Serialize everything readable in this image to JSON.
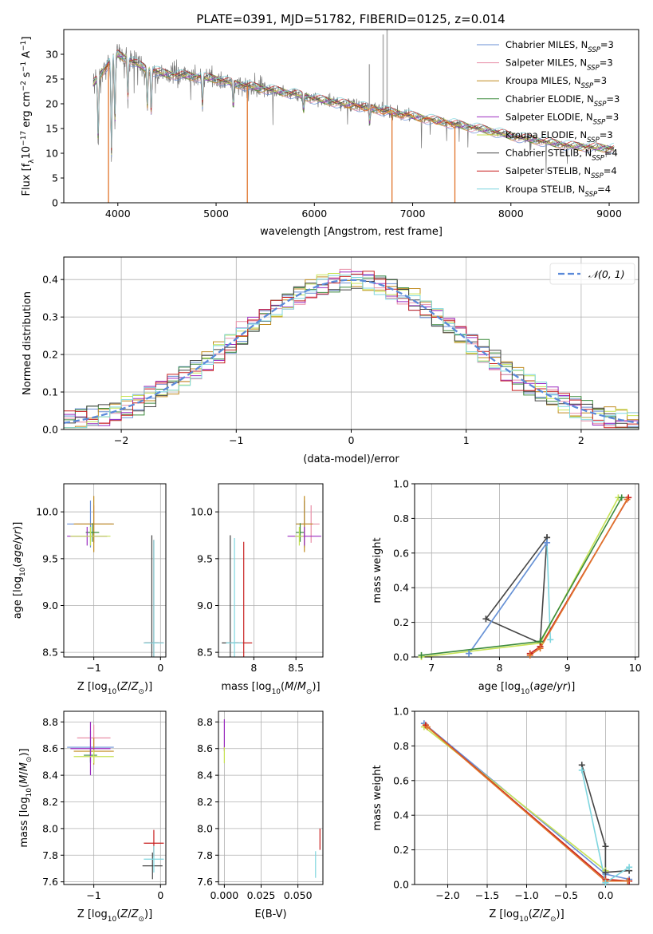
{
  "figure_title": "PLATE=0391, MJD=51782, FIBERID=0125, z=0.014",
  "colors": {
    "Chabrier MILES": "#6a8fd6",
    "Salpeter MILES": "#e88fa8",
    "Kroupa MILES": "#c08a1e",
    "Chabrier ELODIE": "#3c8a3c",
    "Salpeter ELODIE": "#9b2cc0",
    "Kroupa ELODIE": "#c7e356",
    "Chabrier STELIB": "#444444",
    "Salpeter STELIB": "#c82020",
    "Kroupa STELIB": "#7fd6df",
    "gaussian": "#5b8ad9",
    "extra_orange": "#e0742a"
  },
  "chart_data": [
    {
      "type": "line",
      "id": "spectrum",
      "xlabel": "wavelength [Angstrom, rest frame]",
      "ylabel": "Flux [f_λ 10^-17 erg cm^-2 s^-1 A^-1]",
      "xlim": [
        3450,
        9300
      ],
      "ylim": [
        0,
        35
      ],
      "xticks": [
        4000,
        5000,
        6000,
        7000,
        8000,
        9000
      ],
      "yticks": [
        0,
        5,
        10,
        15,
        20,
        25,
        30
      ],
      "grid": false,
      "legend_position": "top-right",
      "legend": [
        {
          "base": "Chabrier MILES, N",
          "sub": "SSP",
          "tail": "=3"
        },
        {
          "base": "Salpeter MILES, N",
          "sub": "SSP",
          "tail": "=3"
        },
        {
          "base": "Kroupa MILES, N",
          "sub": "SSP",
          "tail": "=3"
        },
        {
          "base": "Chabrier ELODIE, N",
          "sub": "SSP",
          "tail": "=3"
        },
        {
          "base": "Salpeter ELODIE, N",
          "sub": "SSP",
          "tail": "=3"
        },
        {
          "base": "Kroupa ELODIE, N",
          "sub": "SSP",
          "tail": "=3"
        },
        {
          "base": "Chabrier STELIB, N",
          "sub": "SSP",
          "tail": "=4"
        },
        {
          "base": "Salpeter STELIB, N",
          "sub": "SSP",
          "tail": "=4"
        },
        {
          "base": "Kroupa STELIB, N",
          "sub": "SSP",
          "tail": "=4"
        }
      ],
      "continuum": {
        "x": [
          3750,
          3900,
          4000,
          4100,
          4300,
          4500,
          4800,
          5000,
          5200,
          5500,
          5800,
          6000,
          6300,
          6600,
          7000,
          7400,
          7800,
          8000,
          8300,
          8600,
          9000
        ],
        "y": [
          24,
          28,
          30,
          29,
          27,
          26,
          25.5,
          25,
          24,
          23,
          22,
          21,
          20,
          19,
          17.5,
          16,
          14.5,
          13.5,
          12.5,
          11.5,
          11
        ]
      },
      "absorption_features": [
        {
          "x": 3800,
          "depth": 13
        },
        {
          "x": 3935,
          "depth": 20
        },
        {
          "x": 3970,
          "depth": 14
        },
        {
          "x": 4102,
          "depth": 8
        },
        {
          "x": 4300,
          "depth": 8
        },
        {
          "x": 4340,
          "depth": 9
        },
        {
          "x": 4861,
          "depth": 6
        },
        {
          "x": 5175,
          "depth": 5
        },
        {
          "x": 5890,
          "depth": 3
        },
        {
          "x": 6563,
          "depth": 3
        }
      ],
      "spikes_down": [
        {
          "x": 3905,
          "series": "Kroupa MILES"
        },
        {
          "x": 5318,
          "series": "Kroupa MILES"
        },
        {
          "x": 6790,
          "series": "Kroupa MILES"
        },
        {
          "x": 7430,
          "series": "Kroupa MILES"
        }
      ],
      "spikes_up": [
        {
          "x": 6560,
          "y": 28
        },
        {
          "x": 6700,
          "y": 34
        },
        {
          "x": 6740,
          "y": 35
        }
      ]
    },
    {
      "type": "line",
      "id": "residuals",
      "xlabel": "(data-model)/error",
      "ylabel": "Normed distribution",
      "xlim": [
        -2.5,
        2.5
      ],
      "ylim": [
        0,
        0.46
      ],
      "xticks": [
        -2,
        -1,
        0,
        1,
        2
      ],
      "yticks": [
        0.0,
        0.1,
        0.2,
        0.3,
        0.4
      ],
      "grid": true,
      "legend_position": "top-right",
      "gaussian_label": "𝒩(0, 1)",
      "bin_width": 0.1
    },
    {
      "type": "scatter",
      "id": "z_age",
      "xlabel": "Z [log10(Z/Z⊙)]",
      "ylabel": "age [log10(age/yr)]",
      "xlim": [
        -1.45,
        0.08
      ],
      "ylim": [
        8.45,
        10.3
      ],
      "xticks": [
        -1,
        0
      ],
      "yticks": [
        8.5,
        9.0,
        9.5,
        10.0
      ],
      "grid": true,
      "points": [
        {
          "s": "Chabrier MILES",
          "x": -1.05,
          "y": 9.87,
          "xe": 0.35,
          "ye": 0.25
        },
        {
          "s": "Salpeter MILES",
          "x": -1.0,
          "y": 9.87,
          "xe": 0.28,
          "ye": 0.2
        },
        {
          "s": "Kroupa MILES",
          "x": -1.0,
          "y": 9.87,
          "xe": 0.3,
          "ye": 0.3
        },
        {
          "s": "Chabrier ELODIE",
          "x": -1.02,
          "y": 9.78,
          "xe": 0.1,
          "ye": 0.1
        },
        {
          "s": "Salpeter ELODIE",
          "x": -1.1,
          "y": 9.74,
          "xe": 0.3,
          "ye": 0.1
        },
        {
          "s": "Kroupa ELODIE",
          "x": -1.05,
          "y": 9.74,
          "xe": 0.3,
          "ye": 0.1
        },
        {
          "s": "Chabrier STELIB",
          "x": -0.13,
          "y": 8.6,
          "xe": 0.1,
          "ye": 1.15
        },
        {
          "s": "Salpeter STELIB",
          "x": -0.1,
          "y": 8.6,
          "xe": 0.15,
          "ye": 1.1
        },
        {
          "s": "Kroupa STELIB",
          "x": -0.1,
          "y": 8.6,
          "xe": 0.15,
          "ye": 1.1
        }
      ]
    },
    {
      "type": "scatter",
      "id": "mass_age",
      "xlabel": "mass [log10(M/M⊙)]",
      "ylabel": "",
      "xlim": [
        7.58,
        8.82
      ],
      "ylim": [
        8.45,
        10.3
      ],
      "xticks": [
        8.0,
        8.5
      ],
      "yticks": [
        8.5,
        9.0,
        9.5,
        10.0
      ],
      "grid": true,
      "points": [
        {
          "s": "Chabrier MILES",
          "x": 8.6,
          "y": 9.87,
          "xe": 0.1,
          "ye": 0.25
        },
        {
          "s": "Salpeter MILES",
          "x": 8.68,
          "y": 9.87,
          "xe": 0.1,
          "ye": 0.2
        },
        {
          "s": "Kroupa MILES",
          "x": 8.6,
          "y": 9.87,
          "xe": 0.1,
          "ye": 0.3
        },
        {
          "s": "Chabrier ELODIE",
          "x": 8.55,
          "y": 9.78,
          "xe": 0.05,
          "ye": 0.1
        },
        {
          "s": "Salpeter ELODIE",
          "x": 8.6,
          "y": 9.74,
          "xe": 0.2,
          "ye": 0.1
        },
        {
          "s": "Kroupa ELODIE",
          "x": 8.54,
          "y": 9.74,
          "xe": 0.05,
          "ye": 0.1
        },
        {
          "s": "Chabrier STELIB",
          "x": 7.72,
          "y": 8.6,
          "xe": 0.1,
          "ye": 1.15
        },
        {
          "s": "Salpeter STELIB",
          "x": 7.88,
          "y": 8.6,
          "xe": 0.1,
          "ye": 1.08
        },
        {
          "s": "Kroupa STELIB",
          "x": 7.77,
          "y": 8.6,
          "xe": 0.1,
          "ye": 1.12
        }
      ]
    },
    {
      "type": "line",
      "id": "age_weight",
      "xlabel": "age [log10(age/yr)]",
      "ylabel": "mass weight",
      "xlim": [
        6.75,
        10.05
      ],
      "ylim": [
        0,
        1.0
      ],
      "xticks": [
        7,
        8,
        9,
        10
      ],
      "yticks": [
        0.0,
        0.2,
        0.4,
        0.6,
        0.8,
        1.0
      ],
      "grid": true,
      "series": [
        {
          "s": "Chabrier STELIB",
          "x": [
            8.7,
            7.8,
            8.6,
            8.7
          ],
          "y": [
            0.69,
            0.22,
            0.08,
            0.69
          ]
        },
        {
          "s": "Kroupa STELIB",
          "x": [
            7.55,
            8.7,
            8.75
          ],
          "y": [
            0.02,
            0.66,
            0.1
          ]
        },
        {
          "s": "Chabrier MILES",
          "x": [
            7.55,
            8.7
          ],
          "y": [
            0.02,
            0.66
          ]
        },
        {
          "s": "Kroupa ELODIE",
          "x": [
            6.85,
            8.6,
            9.75
          ],
          "y": [
            0.0,
            0.08,
            0.92
          ]
        },
        {
          "s": "Chabrier ELODIE",
          "x": [
            6.85,
            8.6,
            9.8
          ],
          "y": [
            0.01,
            0.09,
            0.92
          ]
        },
        {
          "s": "Salpeter STELIB",
          "x": [
            8.45,
            8.6,
            9.9
          ],
          "y": [
            0.02,
            0.06,
            0.92
          ]
        },
        {
          "s": "extra_orange",
          "x": [
            8.45,
            8.6,
            9.88
          ],
          "y": [
            0.01,
            0.05,
            0.91
          ]
        }
      ]
    },
    {
      "type": "scatter",
      "id": "z_mass",
      "xlabel": "Z [log10(Z/Z⊙)]",
      "ylabel": "mass [log10(M/M⊙)]",
      "xlim": [
        -1.45,
        0.08
      ],
      "ylim": [
        7.58,
        8.88
      ],
      "xticks": [
        -1,
        0
      ],
      "yticks": [
        7.6,
        7.8,
        8.0,
        8.2,
        8.4,
        8.6,
        8.8
      ],
      "grid": true,
      "points": [
        {
          "s": "Chabrier MILES",
          "x": -1.05,
          "y": 8.61,
          "xe": 0.35,
          "ye": 0.12
        },
        {
          "s": "Salpeter MILES",
          "x": -1.0,
          "y": 8.68,
          "xe": 0.25,
          "ye": 0.1
        },
        {
          "s": "Kroupa MILES",
          "x": -1.0,
          "y": 8.58,
          "xe": 0.3,
          "ye": 0.1
        },
        {
          "s": "Chabrier ELODIE",
          "x": -1.05,
          "y": 8.55,
          "xe": 0.1,
          "ye": 0.05
        },
        {
          "s": "Salpeter ELODIE",
          "x": -1.05,
          "y": 8.6,
          "xe": 0.3,
          "ye": 0.2
        },
        {
          "s": "Kroupa ELODIE",
          "x": -1.0,
          "y": 8.54,
          "xe": 0.3,
          "ye": 0.05
        },
        {
          "s": "Chabrier STELIB",
          "x": -0.12,
          "y": 7.72,
          "xe": 0.15,
          "ye": 0.1
        },
        {
          "s": "Salpeter STELIB",
          "x": -0.1,
          "y": 7.89,
          "xe": 0.15,
          "ye": 0.1
        },
        {
          "s": "Kroupa STELIB",
          "x": -0.1,
          "y": 7.77,
          "xe": 0.15,
          "ye": 0.1
        }
      ]
    },
    {
      "type": "scatter",
      "id": "ebv_mass",
      "xlabel": "E(B-V)",
      "ylabel": "",
      "xlim": [
        -0.004,
        0.067
      ],
      "ylim": [
        7.58,
        8.88
      ],
      "xticks": [
        0.0,
        0.025,
        0.05
      ],
      "xticklabels": [
        "0.000",
        "0.025",
        "0.050"
      ],
      "yticks": [
        7.6,
        7.8,
        8.0,
        8.2,
        8.4,
        8.6,
        8.8
      ],
      "grid": true,
      "points": [
        {
          "s": "Salpeter ELODIE",
          "x": 0.0,
          "y": 8.7,
          "ye": 0.12
        },
        {
          "s": "Kroupa ELODIE",
          "x": 0.0,
          "y": 8.55,
          "ye": 0.06
        },
        {
          "s": "Kroupa STELIB",
          "x": 0.062,
          "y": 7.73,
          "ye": 0.1
        },
        {
          "s": "Salpeter STELIB",
          "x": 0.065,
          "y": 7.92,
          "ye": 0.08
        }
      ]
    },
    {
      "type": "line",
      "id": "z_weight",
      "xlabel": "Z [log10(Z/Z⊙)]",
      "ylabel": "mass weight",
      "xlim": [
        -2.42,
        0.42
      ],
      "ylim": [
        0,
        1.0
      ],
      "xticks": [
        -2.0,
        -1.5,
        -1.0,
        -0.5,
        0.0
      ],
      "xticklabels": [
        "−2.0",
        "−1.5",
        "−1.0",
        "−0.5",
        "0.0"
      ],
      "yticks": [
        0.0,
        0.2,
        0.4,
        0.6,
        0.8,
        1.0
      ],
      "grid": true,
      "series": [
        {
          "s": "Chabrier MILES",
          "x": [
            -2.3,
            0.0,
            0.3
          ],
          "y": [
            0.93,
            0.06,
            0.03
          ]
        },
        {
          "s": "Kroupa ELODIE",
          "x": [
            -2.3,
            0.0
          ],
          "y": [
            0.91,
            0.08
          ]
        },
        {
          "s": "Salpeter STELIB",
          "x": [
            -2.28,
            0.0,
            0.3
          ],
          "y": [
            0.92,
            0.03,
            0.02
          ]
        },
        {
          "s": "extra_orange",
          "x": [
            -2.26,
            0.0,
            0.28
          ],
          "y": [
            0.91,
            0.02,
            0.02
          ]
        },
        {
          "s": "Chabrier STELIB",
          "x": [
            -0.3,
            0.0,
            0.0,
            0.3
          ],
          "y": [
            0.69,
            0.22,
            0.07,
            0.08
          ]
        },
        {
          "s": "Kroupa STELIB",
          "x": [
            -0.3,
            0.0,
            0.3
          ],
          "y": [
            0.66,
            0.01,
            0.1
          ]
        }
      ]
    }
  ]
}
